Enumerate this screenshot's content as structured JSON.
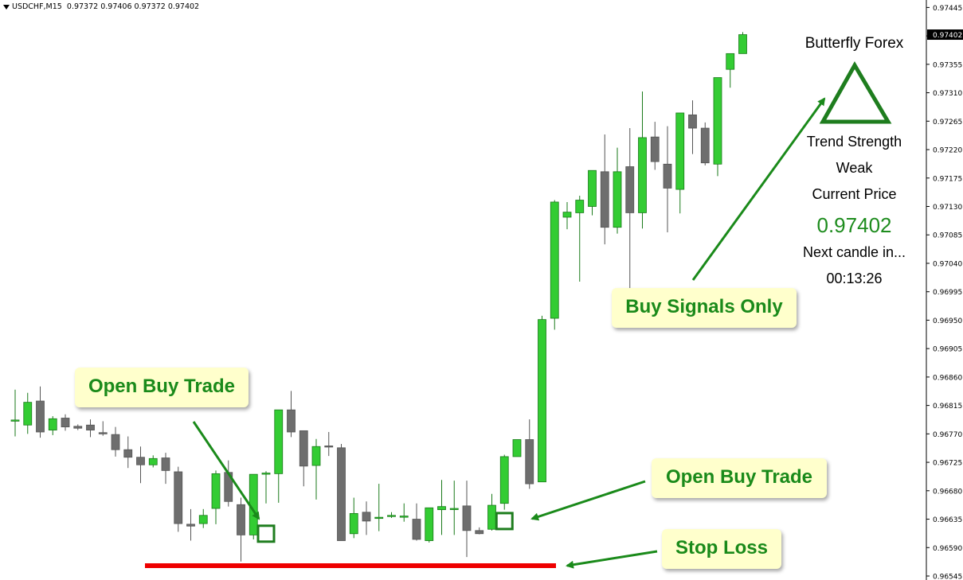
{
  "header": {
    "symbol_info": "USDCHF,M15",
    "ohlc": "0.97372 0.97406 0.97372 0.97402"
  },
  "indicator": {
    "title": "Butterfly Forex",
    "trend_label": "Trend Strength",
    "trend_value": "Weak",
    "price_label": "Current Price",
    "price_value": "0.97402",
    "next_label": "Next candle in...",
    "countdown": "00:13:26",
    "triangle_color": "#1e7d1e",
    "price_color": "#1e8c1e"
  },
  "callouts": {
    "open_buy_1": "Open Buy Trade",
    "buy_signals": "Buy Signals Only",
    "open_buy_2": "Open Buy Trade",
    "stop_loss": "Stop Loss"
  },
  "colors": {
    "bull": "#33cc33",
    "bear": "#6e6e6e",
    "stop_loss": "#ee0000",
    "arrow": "#1a8a1a"
  },
  "chart_data": {
    "type": "candlestick",
    "title": "USDCHF,M15",
    "ylim": [
      0.96545,
      0.97448
    ],
    "yticks": [
      "0.97445",
      "0.97400",
      "0.97355",
      "0.97310",
      "0.97265",
      "0.97220",
      "0.97175",
      "0.97130",
      "0.97085",
      "0.97040",
      "0.96995",
      "0.96950",
      "0.96905",
      "0.96860",
      "0.96815",
      "0.96770",
      "0.96725",
      "0.96680",
      "0.96635",
      "0.96590",
      "0.96545"
    ],
    "current_price_label": "0.97402",
    "candles": [
      {
        "o": 0.96792,
        "h": 0.9684,
        "l": 0.96766,
        "c": 0.96792
      },
      {
        "o": 0.96784,
        "h": 0.96835,
        "l": 0.9677,
        "c": 0.9682
      },
      {
        "o": 0.96822,
        "h": 0.96845,
        "l": 0.96764,
        "c": 0.96773
      },
      {
        "o": 0.96776,
        "h": 0.96798,
        "l": 0.96768,
        "c": 0.96794
      },
      {
        "o": 0.96795,
        "h": 0.96801,
        "l": 0.96775,
        "c": 0.96781
      },
      {
        "o": 0.96782,
        "h": 0.96785,
        "l": 0.96776,
        "c": 0.96779
      },
      {
        "o": 0.96784,
        "h": 0.96793,
        "l": 0.96765,
        "c": 0.96776
      },
      {
        "o": 0.96772,
        "h": 0.9679,
        "l": 0.96767,
        "c": 0.9677
      },
      {
        "o": 0.96769,
        "h": 0.96781,
        "l": 0.96734,
        "c": 0.96745
      },
      {
        "o": 0.96745,
        "h": 0.96766,
        "l": 0.96716,
        "c": 0.96733
      },
      {
        "o": 0.96733,
        "h": 0.9675,
        "l": 0.96692,
        "c": 0.96721
      },
      {
        "o": 0.96721,
        "h": 0.96736,
        "l": 0.96717,
        "c": 0.96731
      },
      {
        "o": 0.96732,
        "h": 0.9674,
        "l": 0.96691,
        "c": 0.96712
      },
      {
        "o": 0.9671,
        "h": 0.96718,
        "l": 0.96615,
        "c": 0.96628
      },
      {
        "o": 0.96627,
        "h": 0.96651,
        "l": 0.96601,
        "c": 0.96624
      },
      {
        "o": 0.96628,
        "h": 0.96651,
        "l": 0.96621,
        "c": 0.96641
      },
      {
        "o": 0.96652,
        "h": 0.96712,
        "l": 0.96627,
        "c": 0.96707
      },
      {
        "o": 0.96709,
        "h": 0.96728,
        "l": 0.96655,
        "c": 0.96663
      },
      {
        "o": 0.96658,
        "h": 0.96669,
        "l": 0.96568,
        "c": 0.9661
      },
      {
        "o": 0.9661,
        "h": 0.96704,
        "l": 0.96603,
        "c": 0.96706
      },
      {
        "o": 0.96708,
        "h": 0.96711,
        "l": 0.9666,
        "c": 0.96708
      },
      {
        "o": 0.96707,
        "h": 0.96808,
        "l": 0.96661,
        "c": 0.96808
      },
      {
        "o": 0.96808,
        "h": 0.96838,
        "l": 0.96765,
        "c": 0.96773
      },
      {
        "o": 0.96775,
        "h": 0.96775,
        "l": 0.96687,
        "c": 0.96719
      },
      {
        "o": 0.9672,
        "h": 0.96762,
        "l": 0.96666,
        "c": 0.9675
      },
      {
        "o": 0.96751,
        "h": 0.96773,
        "l": 0.96735,
        "c": 0.9675
      },
      {
        "o": 0.96748,
        "h": 0.96754,
        "l": 0.96601,
        "c": 0.96601
      },
      {
        "o": 0.96612,
        "h": 0.96669,
        "l": 0.96605,
        "c": 0.96644
      },
      {
        "o": 0.96646,
        "h": 0.96663,
        "l": 0.9661,
        "c": 0.96632
      },
      {
        "o": 0.96638,
        "h": 0.96691,
        "l": 0.96616,
        "c": 0.96638
      },
      {
        "o": 0.9664,
        "h": 0.96646,
        "l": 0.96637,
        "c": 0.96641
      },
      {
        "o": 0.96638,
        "h": 0.9666,
        "l": 0.96631,
        "c": 0.9664
      },
      {
        "o": 0.96635,
        "h": 0.9666,
        "l": 0.96601,
        "c": 0.96603
      },
      {
        "o": 0.96601,
        "h": 0.96653,
        "l": 0.96598,
        "c": 0.96653
      },
      {
        "o": 0.9665,
        "h": 0.96697,
        "l": 0.9661,
        "c": 0.96655
      },
      {
        "o": 0.96652,
        "h": 0.96696,
        "l": 0.9661,
        "c": 0.96652
      },
      {
        "o": 0.96656,
        "h": 0.96696,
        "l": 0.96575,
        "c": 0.96617
      },
      {
        "o": 0.96617,
        "h": 0.96622,
        "l": 0.96611,
        "c": 0.96612
      },
      {
        "o": 0.96619,
        "h": 0.96675,
        "l": 0.96617,
        "c": 0.96657
      },
      {
        "o": 0.9666,
        "h": 0.96737,
        "l": 0.9665,
        "c": 0.96734
      },
      {
        "o": 0.96734,
        "h": 0.9676,
        "l": 0.96737,
        "c": 0.96761
      },
      {
        "o": 0.96761,
        "h": 0.96793,
        "l": 0.96683,
        "c": 0.96691
      },
      {
        "o": 0.96694,
        "h": 0.96957,
        "l": 0.96694,
        "c": 0.96951
      },
      {
        "o": 0.96953,
        "h": 0.9714,
        "l": 0.96935,
        "c": 0.97137
      },
      {
        "o": 0.97113,
        "h": 0.97137,
        "l": 0.97094,
        "c": 0.97121
      },
      {
        "o": 0.9712,
        "h": 0.97147,
        "l": 0.97011,
        "c": 0.9714
      },
      {
        "o": 0.9713,
        "h": 0.97187,
        "l": 0.97116,
        "c": 0.97187
      },
      {
        "o": 0.97185,
        "h": 0.97244,
        "l": 0.9707,
        "c": 0.97097
      },
      {
        "o": 0.97097,
        "h": 0.97223,
        "l": 0.97087,
        "c": 0.97185
      },
      {
        "o": 0.97193,
        "h": 0.97254,
        "l": 0.96998,
        "c": 0.9712
      },
      {
        "o": 0.9712,
        "h": 0.97312,
        "l": 0.97095,
        "c": 0.97239
      },
      {
        "o": 0.9724,
        "h": 0.97264,
        "l": 0.97188,
        "c": 0.97201
      },
      {
        "o": 0.97197,
        "h": 0.97257,
        "l": 0.97089,
        "c": 0.97159
      },
      {
        "o": 0.97157,
        "h": 0.9727,
        "l": 0.97119,
        "c": 0.97278
      },
      {
        "o": 0.97275,
        "h": 0.97298,
        "l": 0.97213,
        "c": 0.97254
      },
      {
        "o": 0.97254,
        "h": 0.97263,
        "l": 0.97195,
        "c": 0.97199
      },
      {
        "o": 0.97197,
        "h": 0.97334,
        "l": 0.97178,
        "c": 0.97334
      },
      {
        "o": 0.97347,
        "h": 0.97372,
        "l": 0.97318,
        "c": 0.97372
      },
      {
        "o": 0.97372,
        "h": 0.97406,
        "l": 0.97372,
        "c": 0.97402
      }
    ],
    "stop_loss_level": 0.96557,
    "entry_markers": [
      {
        "candle_index": 20,
        "level": 0.96612
      },
      {
        "candle_index": 39,
        "level": 0.96632
      }
    ]
  }
}
